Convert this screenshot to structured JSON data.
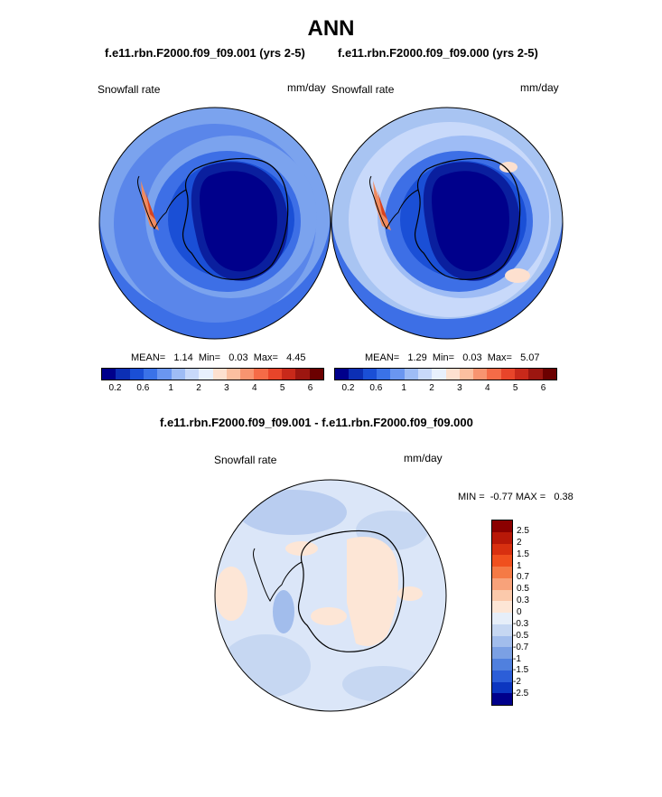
{
  "title": "ANN",
  "panels": [
    {
      "case": "f.e11.rbn.F2000.f09_f09.001 (yrs 2-5)",
      "variable": "Snowfall rate",
      "units": "mm/day",
      "stats": "MEAN=   1.14  Min=   0.03  Max=   4.45",
      "mean": 1.14,
      "min": 0.03,
      "max": 4.45
    },
    {
      "case": "f.e11.rbn.F2000.f09_f09.000 (yrs 2-5)",
      "variable": "Snowfall rate",
      "units": "mm/day",
      "stats": "MEAN=   1.29  Min=   0.03  Max=   5.07",
      "mean": 1.29,
      "min": 0.03,
      "max": 5.07
    }
  ],
  "colorbar_main": {
    "colors": [
      "#00008b",
      "#0c2fb4",
      "#1a4fd6",
      "#3a72e8",
      "#6a96f0",
      "#9ebcf5",
      "#c8d9fa",
      "#e8f0fd",
      "#fde0cf",
      "#fbbfa0",
      "#f89470",
      "#f56b47",
      "#e8452a",
      "#c8291a",
      "#9c1610",
      "#6b0000"
    ],
    "tick_labels": [
      "0.2",
      "0.6",
      "1",
      "2",
      "3",
      "4",
      "5",
      "6"
    ]
  },
  "difference": {
    "title": "f.e11.rbn.F2000.f09_f09.001 - f.e11.rbn.F2000.f09_f09.000",
    "variable": "Snowfall rate",
    "units": "mm/day",
    "minmax": "MIN =  -0.77 MAX =   0.38",
    "min": -0.77,
    "max": 0.38,
    "colorbar": {
      "colors": [
        "#8b0000",
        "#b81808",
        "#d83010",
        "#f0501e",
        "#f57a45",
        "#f8a27a",
        "#fbc9ab",
        "#fde6d6",
        "#e6eef9",
        "#c6d7f2",
        "#a2bdec",
        "#7ba0e4",
        "#5080de",
        "#2c5ed8",
        "#0c36c0",
        "#00008b"
      ],
      "tick_labels": [
        "2.5",
        "2",
        "1.5",
        "1",
        "0.7",
        "0.5",
        "0.3",
        "0",
        "-0.3",
        "-0.5",
        "-0.7",
        "-1",
        "-1.5",
        "-2",
        "-2.5"
      ]
    }
  }
}
